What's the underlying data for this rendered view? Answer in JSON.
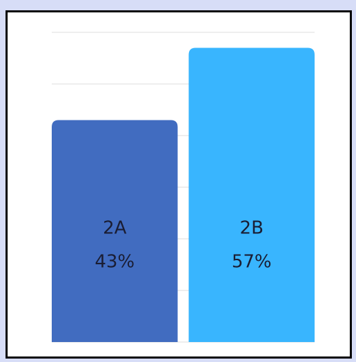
{
  "chart_data": {
    "type": "bar",
    "categories": [
      "2A",
      "2B"
    ],
    "values": [
      43,
      57
    ],
    "value_labels": [
      "43%",
      "57%"
    ],
    "colors": [
      "#416cc0",
      "#39b5fe"
    ],
    "ylim": [
      0,
      60
    ],
    "yticks": [
      0,
      10,
      20,
      30,
      40,
      50,
      60
    ],
    "grid": true
  }
}
